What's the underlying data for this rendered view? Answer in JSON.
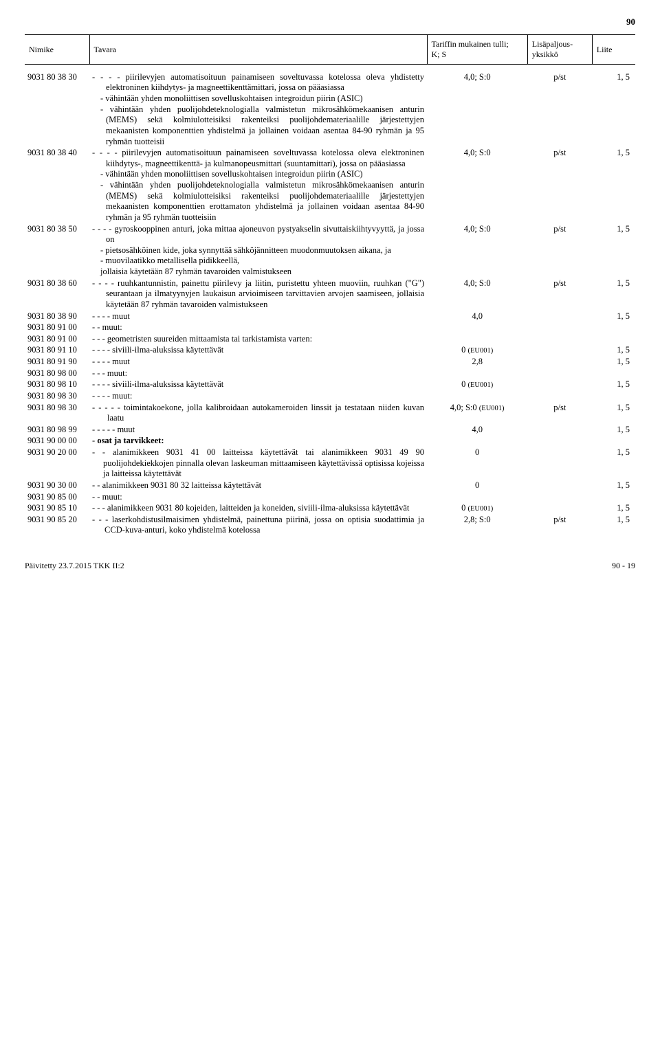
{
  "page_number_top": "90",
  "header": {
    "nimike": "Nimike",
    "tavara": "Tavara",
    "tariffi": "Tariffin mukainen tulli;\nK; S",
    "yksikko": "Lisäpaljous-\nyksikkö",
    "liite": "Liite"
  },
  "rows": [
    {
      "code": "9031 80 38 30",
      "tavara": "- - - - piirilevyjen automatisoituun painamiseen soveltuvassa kotelossa oleva yhdistetty elektroninen kiihdytys- ja magneettikenttämittari, jossa on pääasiassa",
      "tariffi": "4,0; S:0",
      "yks": "p/st",
      "liite": "1, 5",
      "subs": [
        "- vähintään yhden monoliittisen sovelluskohtaisen integroidun piirin (ASIC)",
        "- vähintään yhden puolijohdeteknologialla valmistetun mikrosähkömekaanisen anturin (MEMS) sekä kolmiulotteisiksi rakenteiksi puolijohdemateriaalille järjestettyjen mekaanisten komponenttien yhdistelmä ja jollainen voidaan asentaa 84-90 ryhmän ja 95 ryhmän tuotteisii"
      ]
    },
    {
      "code": "9031 80 38 40",
      "tavara": "- - - - piirilevyjen automatisoituun painamiseen soveltuvassa kotelossa oleva elektroninen kiihdytys-, magneettikenttä- ja kulmanopeusmittari (suuntamittari), jossa on pääasiassa",
      "tariffi": "4,0; S:0",
      "yks": "p/st",
      "liite": "1, 5",
      "subs": [
        "- vähintään yhden monoliittisen sovelluskohtaisen integroidun piirin (ASIC)",
        "- vähintään yhden puolijohdeteknologialla valmistetun mikrosähkömekaanisen anturin (MEMS) sekä kolmiulotteisiksi rakenteiksi puolijohdemateriaalille järjestettyjen mekaanisten komponenttien erottamaton yhdistelmä ja jollainen voidaan asentaa 84-90 ryhmän ja 95 ryhmän tuotteisiin"
      ]
    },
    {
      "code": "9031 80 38 50",
      "tavara": "- - - - gyroskooppinen anturi, joka mittaa ajoneuvon pystyakselin sivuttaiskiihtyvyyttä, ja jossa on",
      "tariffi": "4,0; S:0",
      "yks": "p/st",
      "liite": "1, 5",
      "subs": [
        "- pietsosähköinen kide, joka synnyttää sähköjännitteen muodonmuutoksen aikana, ja",
        "- muovilaatikko metallisella pidikkeellä,",
        "jollaisia käytetään 87 ryhmän tavaroiden valmistukseen"
      ]
    },
    {
      "code": "9031 80 38 60",
      "tavara": "- - - - ruuhkantunnistin, painettu piirilevy ja liitin, puristettu yhteen muoviin, ruuhkan (\"G\") seurantaan ja ilmatyynyjen laukaisun arvioimiseen tarvittavien arvojen saamiseen, jollaisia käytetään 87 ryhmän tavaroiden valmistukseen",
      "tariffi": "4,0; S:0",
      "yks": "p/st",
      "liite": "1, 5"
    },
    {
      "code": "9031 80 38 90",
      "tavara": "- - - - muut",
      "tariffi": "4,0",
      "yks": "",
      "liite": "1, 5"
    },
    {
      "code": "9031 80 91 00",
      "tavara": "- - muut:",
      "tariffi": "",
      "yks": "",
      "liite": ""
    },
    {
      "code": "9031 80 91 00",
      "tavara": "- - - geometristen suureiden mittaamista tai tarkistamista varten:",
      "tariffi": "",
      "yks": "",
      "liite": ""
    },
    {
      "code": "9031 80 91 10",
      "tavara": "- - - - siviili-ilma-aluksissa käytettävät",
      "tariffi": "0 (EU001)",
      "yks": "",
      "liite": "1, 5"
    },
    {
      "code": "9031 80 91 90",
      "tavara": "- - - - muut",
      "tariffi": "2,8",
      "yks": "",
      "liite": "1, 5"
    },
    {
      "code": "9031 80 98 00",
      "tavara": "- - - muut:",
      "tariffi": "",
      "yks": "",
      "liite": ""
    },
    {
      "code": "9031 80 98 10",
      "tavara": "- - - - siviili-ilma-aluksissa käytettävät",
      "tariffi": "0 (EU001)",
      "yks": "",
      "liite": "1, 5"
    },
    {
      "code": "9031 80 98 30",
      "tavara": "- - - - muut:",
      "tariffi": "",
      "yks": "",
      "liite": ""
    },
    {
      "code": "9031 80 98 30",
      "tavara": "- - - - - toimintakoekone, jolla kalibroidaan autokameroiden linssit ja testataan niiden kuvan laatu",
      "tariffi": "4,0; S:0 (EU001)",
      "yks": "p/st",
      "liite": "1, 5"
    },
    {
      "code": "9031 80 98 99",
      "tavara": "- - - - - muut",
      "tariffi": "4,0",
      "yks": "",
      "liite": "1, 5"
    },
    {
      "code": "9031 90 00 00",
      "tavara": "- osat ja tarvikkeet:",
      "bold": true,
      "tariffi": "",
      "yks": "",
      "liite": ""
    },
    {
      "code": "9031 90 20 00",
      "tavara": "- - alanimikkeen 9031 41 00 laitteissa käytettävät tai alanimikkeen 9031 49 90 puolijohdekiekkojen pinnalla olevan laskeuman mittaamiseen käytettävissä optisissa kojeissa ja laitteissa käytettävät",
      "tariffi": "0",
      "yks": "",
      "liite": "1, 5"
    },
    {
      "code": "9031 90 30 00",
      "tavara": "- - alanimikkeen 9031 80 32 laitteissa käytettävät",
      "tariffi": "0",
      "yks": "",
      "liite": "1, 5"
    },
    {
      "code": "9031 90 85 00",
      "tavara": "- - muut:",
      "tariffi": "",
      "yks": "",
      "liite": ""
    },
    {
      "code": "9031 90 85 10",
      "tavara": "- - - alanimikkeen 9031 80 kojeiden, laitteiden ja koneiden, siviili-ilma-aluksissa käytettävät",
      "tariffi": "0 (EU001)",
      "yks": "",
      "liite": "1, 5"
    },
    {
      "code": "9031 90 85 20",
      "tavara": "- - - laserkohdistusilmaisimen yhdistelmä, painettuna piirinä, jossa on optisia suodattimia ja CCD-kuva-anturi, koko yhdistelmä kotelossa",
      "tariffi": "2,8; S:0",
      "yks": "p/st",
      "liite": "1, 5"
    }
  ],
  "footer_left": "Päivitetty 23.7.2015 TKK II:2",
  "footer_right": "90 - 19"
}
